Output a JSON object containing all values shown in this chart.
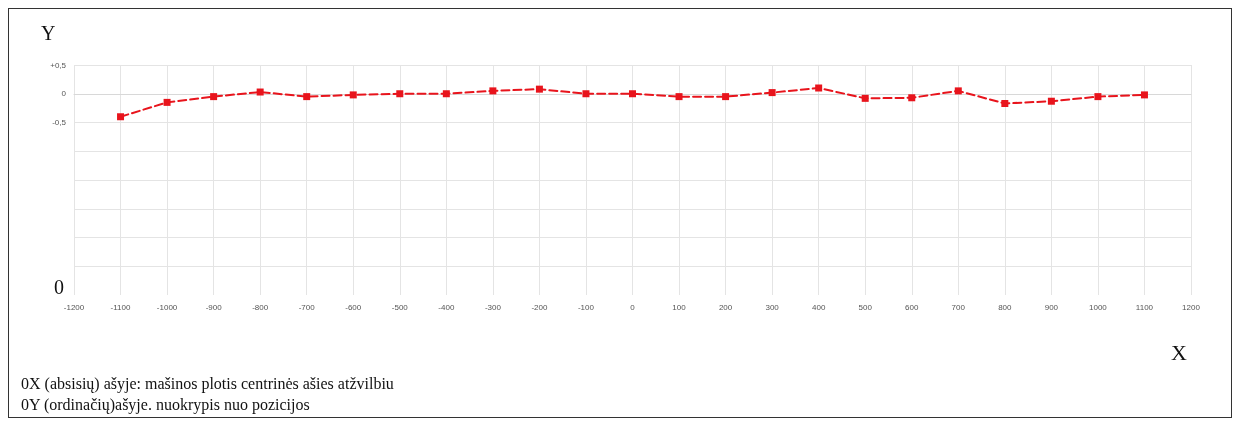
{
  "chart_data": {
    "type": "line",
    "xlabel": "X",
    "ylabel": "Y",
    "annotations": [
      "0",
      "0X (absisių) ašyje: mašinos plotis centrinės ašies atžvilbiu",
      "0Y (ordinačių)ašyje. nuokrypis nuo pozicijos"
    ],
    "x": [
      -1100,
      -1000,
      -900,
      -800,
      -700,
      -600,
      -500,
      -400,
      -300,
      -200,
      -100,
      0,
      100,
      200,
      300,
      400,
      500,
      600,
      700,
      800,
      900,
      1000,
      1100
    ],
    "series": [
      {
        "color": "#e8141c",
        "values": [
          -0.4,
          -0.15,
          -0.05,
          0.03,
          -0.05,
          -0.02,
          0,
          0,
          0.05,
          0.08,
          0,
          0,
          -0.05,
          -0.05,
          0.02,
          0.1,
          -0.08,
          -0.07,
          0.05,
          -0.17,
          -0.13,
          -0.05,
          -0.02
        ]
      }
    ],
    "xlim": [
      -1200,
      1200
    ],
    "xticks": [
      -1200,
      -1100,
      -1000,
      -900,
      -800,
      -700,
      -600,
      -500,
      -400,
      -300,
      -200,
      -100,
      0,
      100,
      200,
      300,
      400,
      500,
      600,
      700,
      800,
      900,
      1000,
      1100,
      1200
    ],
    "ylim": [
      -3.5,
      0.5
    ],
    "yticks": [
      {
        "value": 0.5,
        "label": "+0,5"
      },
      0,
      {
        "value": -0.5,
        "label": "-0,5"
      },
      {
        "value": -1,
        "label": null
      },
      {
        "value": -1.5,
        "label": null
      },
      {
        "value": -2,
        "label": null
      },
      {
        "value": -2.5,
        "label": null
      },
      {
        "value": -3,
        "label": null
      }
    ],
    "grid": true,
    "marker": "square",
    "line_style": "dashed"
  }
}
